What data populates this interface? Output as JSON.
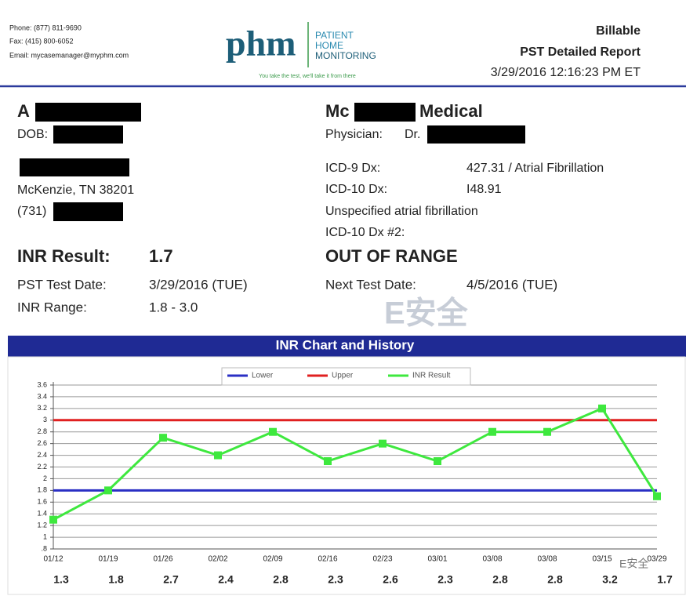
{
  "header": {
    "contact": [
      "Phone: (877) 811-9690",
      "Fax: (415) 800-6052",
      "Email: mycasemanager@myphm.com"
    ],
    "logo": {
      "mark": "phm",
      "name": [
        "PATIENT",
        "HOME",
        "MONITORING"
      ],
      "tagline": "You take the test, we'll take it from there"
    },
    "report": [
      "Billable",
      "PST Detailed Report",
      "3/29/2016 12:16:23 PM ET"
    ]
  },
  "patient": {
    "name": "A",
    "dob_label": "DOB:",
    "city": "McKenzie, TN 38201",
    "phone": "(731)"
  },
  "provider": {
    "name_start": "Mc",
    "name_end": "Medical",
    "physician_label": "Physician:",
    "physician": "Dr.",
    "dx": [
      [
        "ICD-9 Dx:",
        "427.31 / Atrial Fibrillation"
      ],
      [
        "ICD-10 Dx:",
        "I48.91"
      ]
    ],
    "dx_note": "Unspecified atrial fibrillation",
    "dx2_label": "ICD-10 Dx #2:"
  },
  "result": {
    "inr_label": "INR Result:",
    "inr": "1.7",
    "status": "OUT OF RANGE",
    "test_date_label": "PST Test Date:",
    "test_date": "3/29/2016 (TUE)",
    "range_label": "INR Range:",
    "range": "1.8 - 3.0",
    "next_label": "Next Test Date:",
    "next_date": "4/5/2016 (TUE)"
  },
  "watermark": "E安全",
  "chart_data": {
    "type": "line",
    "title": "INR Chart and History",
    "categories": [
      "01/12",
      "01/19",
      "01/26",
      "02/02",
      "02/09",
      "02/16",
      "02/23",
      "03/01",
      "03/08",
      "03/08",
      "03/15",
      "03/29"
    ],
    "series": [
      {
        "name": "Lower",
        "color": "#2a2fc4",
        "values": [
          1.8,
          1.8,
          1.8,
          1.8,
          1.8,
          1.8,
          1.8,
          1.8,
          1.8,
          1.8,
          1.8,
          1.8
        ]
      },
      {
        "name": "Upper",
        "color": "#e02020",
        "values": [
          3,
          3,
          3,
          3,
          3,
          3,
          3,
          3,
          3,
          3,
          3,
          3
        ]
      },
      {
        "name": "INR Result",
        "color": "#3ee83e",
        "values": [
          1.3,
          1.8,
          2.7,
          2.4,
          2.8,
          2.3,
          2.6,
          2.3,
          2.8,
          2.8,
          3.2,
          1.7
        ]
      }
    ],
    "ylim": [
      0.8,
      3.6
    ],
    "yticks": [
      {
        "value": 0.8,
        "label": ".8"
      },
      1,
      1.2,
      1.4,
      1.6,
      1.8,
      2,
      2.2,
      2.4,
      2.6,
      2.8,
      3,
      3.2,
      3.4,
      3.6
    ],
    "grid": true,
    "legend": "top"
  }
}
